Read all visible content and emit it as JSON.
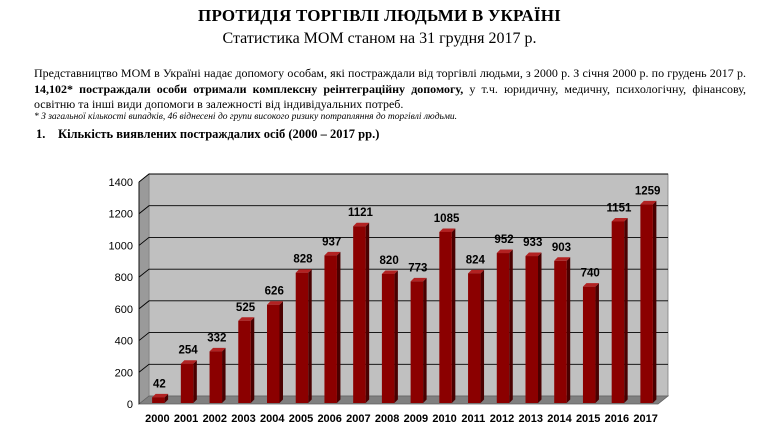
{
  "header": {
    "title": "ПРОТИДІЯ ТОРГІВЛІ ЛЮДЬМИ В УКРАЇНІ",
    "subtitle": "Статистика МОМ станом на 31 грудня 2017 р."
  },
  "intro": {
    "part1": "Представництво МОМ в Україні надає допомогу особам, які постраждали від торгівлі людьми, з 2000 р. З січня 2000 р. по грудень 2017 р. ",
    "bold": "14,102* постраждали особи отримали комплексну реінтеграційну допомогу,",
    "part2": " у т.ч. юридичну, медичну, психологічну, фінансову, освітню та інші види допомоги в залежності від індивідуальних потреб.",
    "footnote": "* З загальної кількості випадків, 46 віднесені до групи високого ризику потрапляння до торгівлі людьми."
  },
  "section": {
    "number": "1.",
    "title": "Кількість виявлених постраждалих осіб (2000 –  2017 рр.)"
  },
  "chart_data": {
    "type": "bar",
    "categories": [
      "2000",
      "2001",
      "2002",
      "2003",
      "2004",
      "2005",
      "2006",
      "2007",
      "2008",
      "2009",
      "2010",
      "2011",
      "2012",
      "2013",
      "2014",
      "2015",
      "2016",
      "2017"
    ],
    "values": [
      42,
      254,
      332,
      525,
      626,
      828,
      937,
      1121,
      820,
      773,
      1085,
      824,
      952,
      933,
      903,
      740,
      1151,
      1259
    ],
    "ylim": [
      0,
      1400
    ],
    "yticks": [
      0,
      200,
      400,
      600,
      800,
      1000,
      1200,
      1400
    ],
    "grid": true,
    "bar_color": "#8b0000",
    "wall_color": "#c0c0c0",
    "floor_color": "#808080"
  }
}
